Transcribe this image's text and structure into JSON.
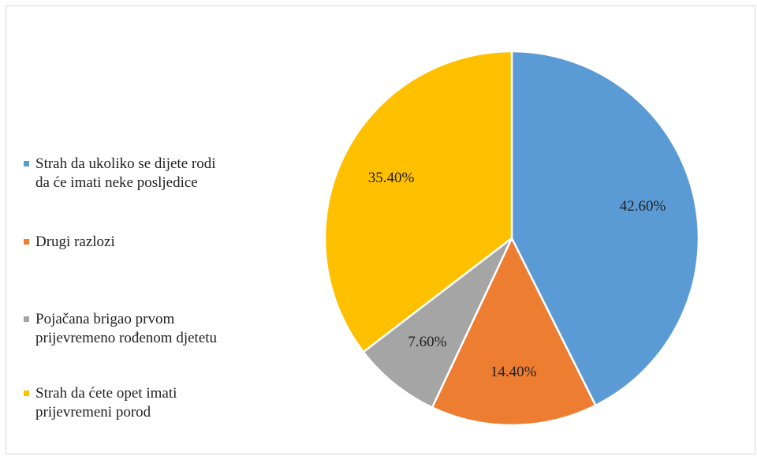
{
  "chart_data": {
    "type": "pie",
    "slices": [
      {
        "label": "Strah da ukoliko se dijete rodi\nda će imati neke posljedice",
        "value": 42.6,
        "display": "42.60%",
        "color": "#5B9BD5"
      },
      {
        "label": "Drugi razlozi",
        "value": 14.4,
        "display": "14.40%",
        "color": "#ED7D31"
      },
      {
        "label": "Pojačana brigao prvom\nprijevremeno rođenom djetetu",
        "value": 7.6,
        "display": "7.60%",
        "color": "#A5A5A5"
      },
      {
        "label": "Strah da ćete opet imati\nprijevremeni porod",
        "value": 35.4,
        "display": "35.40%",
        "color": "#FFC000"
      }
    ],
    "legend_position": "left",
    "start_angle": "top, clockwise"
  }
}
